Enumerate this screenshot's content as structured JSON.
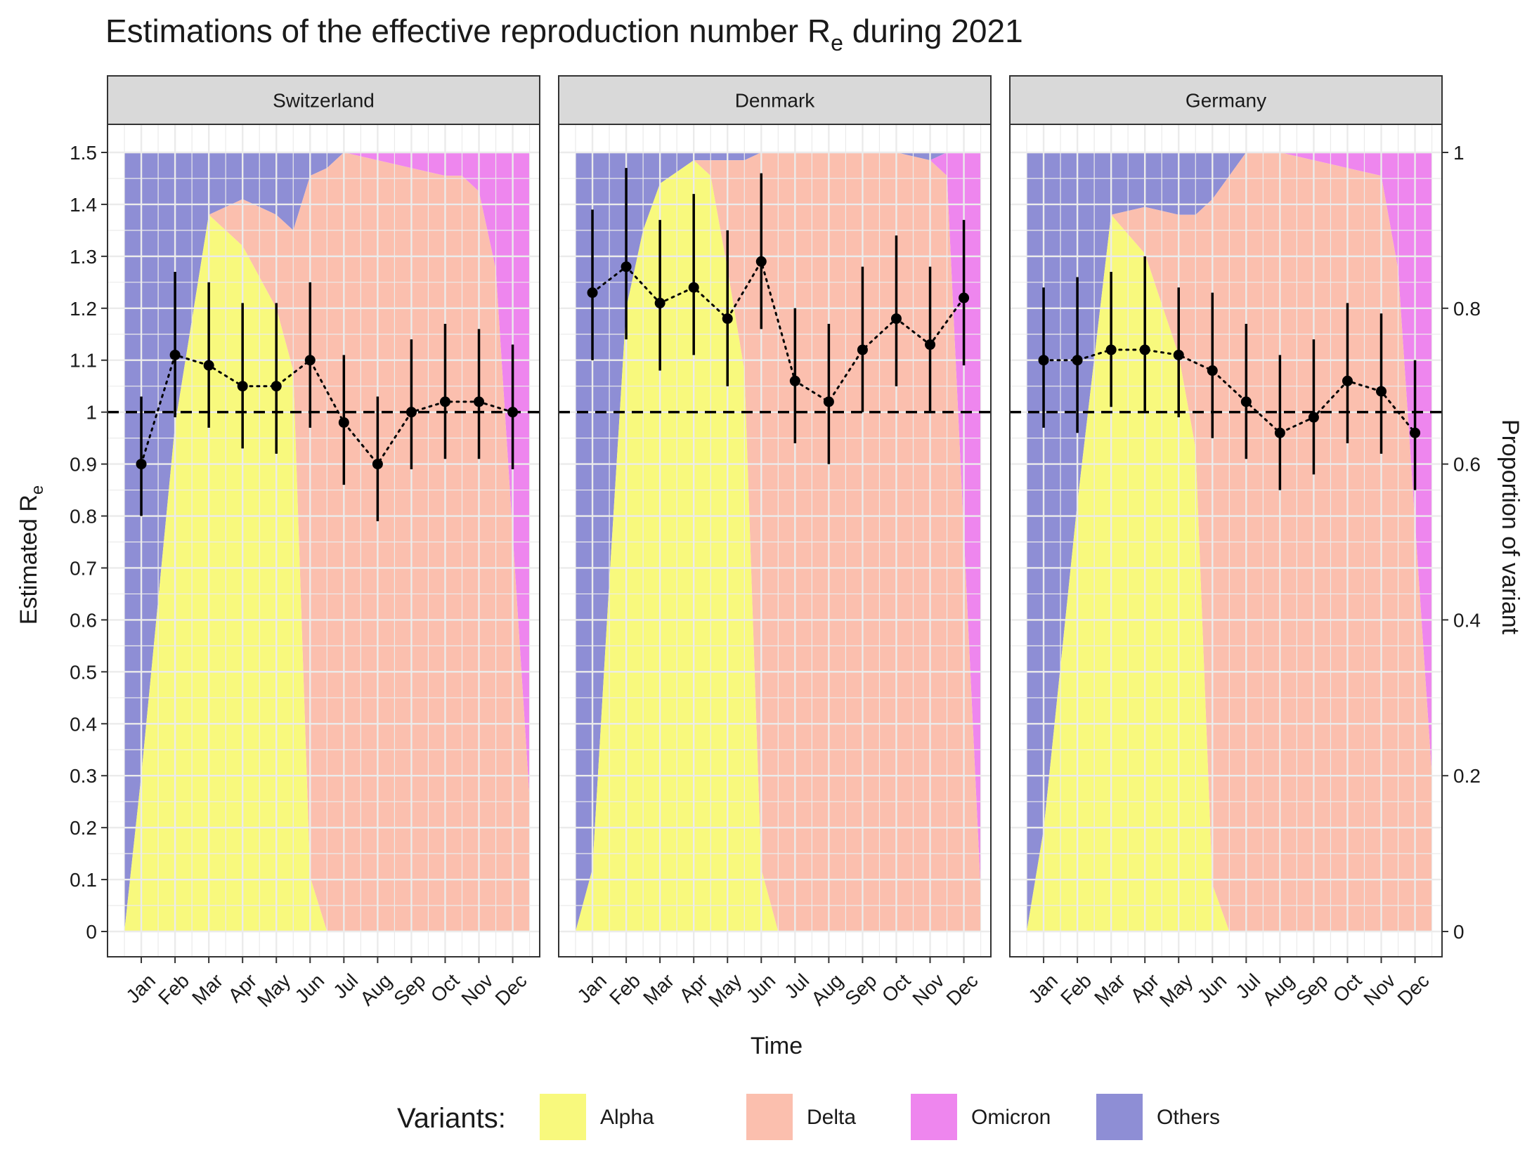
{
  "chart_data": {
    "type": "area",
    "title_main": "Estimations of the effective reproduction number R",
    "title_sub": "e",
    "title_tail": " during 2021",
    "xlabel": "Time",
    "ylabel_main": "Estimated R",
    "ylabel_sub": "e",
    "ylabel_right": "Proportion of variant",
    "ylim": [
      0,
      1.5
    ],
    "y_ticks": [
      "0",
      "0.1",
      "0.2",
      "0.3",
      "0.4",
      "0.5",
      "0.6",
      "0.7",
      "0.8",
      "0.9",
      "1",
      "1.1",
      "1.2",
      "1.3",
      "1.4",
      "1.5"
    ],
    "y_right_ticks": [
      "0",
      "0.2",
      "0.4",
      "0.6",
      "0.8",
      "1"
    ],
    "months": [
      "Jan",
      "Feb",
      "Mar",
      "Apr",
      "May",
      "Jun",
      "Jul",
      "Aug",
      "Sep",
      "Oct",
      "Nov",
      "Dec"
    ],
    "reference_line": 1,
    "legend_title": "Variants:",
    "legend_position": "bottom",
    "variants": [
      {
        "name": "Alpha",
        "color": "#f8f97d"
      },
      {
        "name": "Delta",
        "color": "#fbbfae"
      },
      {
        "name": "Omicron",
        "color": "#ee86ee"
      },
      {
        "name": "Others",
        "color": "#8e8ed5"
      }
    ],
    "panels": [
      {
        "name": "Switzerland",
        "estimate": [
          0.9,
          1.11,
          1.09,
          1.05,
          1.05,
          1.1,
          0.98,
          0.9,
          1.0,
          1.02,
          1.02,
          1.0
        ],
        "lower": [
          0.8,
          0.99,
          0.97,
          0.93,
          0.92,
          0.97,
          0.86,
          0.79,
          0.89,
          0.91,
          0.91,
          0.89
        ],
        "upper": [
          1.03,
          1.27,
          1.25,
          1.21,
          1.21,
          1.25,
          1.11,
          1.03,
          1.14,
          1.17,
          1.16,
          1.13
        ],
        "composition": {
          "t": [
            0.5,
            1.0,
            2.0,
            3.0,
            4.0,
            5.0,
            5.5,
            6.0,
            6.5,
            7.0,
            8.0,
            9.0,
            10.0,
            10.5,
            11.0,
            11.5,
            12.5
          ],
          "alpha": [
            0.0,
            0.2,
            0.65,
            0.92,
            0.88,
            0.8,
            0.72,
            0.07,
            0.0,
            0.0,
            0.0,
            0.0,
            0.0,
            0.0,
            0.0,
            0.0,
            0.0
          ],
          "delta": [
            0.0,
            0.0,
            0.0,
            0.0,
            0.06,
            0.12,
            0.18,
            0.9,
            0.98,
            1.0,
            0.99,
            0.98,
            0.97,
            0.97,
            0.95,
            0.85,
            0.17
          ],
          "omicron": [
            0.0,
            0.0,
            0.0,
            0.0,
            0.0,
            0.0,
            0.0,
            0.0,
            0.0,
            0.0,
            0.01,
            0.02,
            0.03,
            0.03,
            0.05,
            0.15,
            0.83
          ]
        }
      },
      {
        "name": "Denmark",
        "estimate": [
          1.23,
          1.28,
          1.21,
          1.24,
          1.18,
          1.29,
          1.06,
          1.02,
          1.12,
          1.18,
          1.13,
          1.22
        ],
        "lower": [
          1.1,
          1.14,
          1.08,
          1.11,
          1.05,
          1.16,
          0.94,
          0.9,
          1.0,
          1.05,
          1.0,
          1.09
        ],
        "upper": [
          1.39,
          1.47,
          1.37,
          1.42,
          1.35,
          1.46,
          1.2,
          1.17,
          1.28,
          1.34,
          1.28,
          1.37
        ],
        "composition": {
          "t": [
            0.5,
            1.0,
            1.5,
            2.0,
            2.5,
            3.0,
            4.0,
            4.5,
            5.0,
            5.5,
            6.0,
            6.5,
            7.0,
            8.0,
            9.0,
            10.0,
            11.0,
            11.5,
            12.5
          ],
          "alpha": [
            0.0,
            0.08,
            0.45,
            0.8,
            0.9,
            0.96,
            0.99,
            0.97,
            0.85,
            0.72,
            0.08,
            0.0,
            0.0,
            0.0,
            0.0,
            0.0,
            0.0,
            0.0,
            0.0
          ],
          "delta": [
            0.0,
            0.0,
            0.0,
            0.0,
            0.0,
            0.0,
            0.0,
            0.02,
            0.14,
            0.27,
            0.92,
            1.0,
            1.0,
            1.0,
            1.0,
            1.0,
            0.99,
            0.97,
            0.05
          ],
          "omicron": [
            0.0,
            0.0,
            0.0,
            0.0,
            0.0,
            0.0,
            0.0,
            0.0,
            0.0,
            0.0,
            0.0,
            0.0,
            0.0,
            0.0,
            0.0,
            0.0,
            0.0,
            0.03,
            0.95
          ]
        }
      },
      {
        "name": "Germany",
        "estimate": [
          1.1,
          1.1,
          1.12,
          1.12,
          1.11,
          1.08,
          1.02,
          0.96,
          0.99,
          1.06,
          1.04,
          0.96
        ],
        "lower": [
          0.97,
          0.96,
          1.01,
          1.0,
          0.99,
          0.95,
          0.91,
          0.85,
          0.88,
          0.94,
          0.92,
          0.85
        ],
        "upper": [
          1.24,
          1.26,
          1.27,
          1.3,
          1.24,
          1.23,
          1.17,
          1.11,
          1.14,
          1.21,
          1.19,
          1.1
        ],
        "composition": {
          "t": [
            0.5,
            1.0,
            2.0,
            3.0,
            4.0,
            5.0,
            5.5,
            6.0,
            6.5,
            7.0,
            8.0,
            9.0,
            10.0,
            11.0,
            11.5,
            12.5
          ],
          "alpha": [
            0.0,
            0.13,
            0.55,
            0.92,
            0.87,
            0.74,
            0.62,
            0.06,
            0.0,
            0.0,
            0.0,
            0.0,
            0.0,
            0.0,
            0.0,
            0.0
          ],
          "delta": [
            0.0,
            0.0,
            0.0,
            0.0,
            0.06,
            0.18,
            0.3,
            0.88,
            0.97,
            1.0,
            1.0,
            0.99,
            0.98,
            0.97,
            0.85,
            0.2
          ],
          "omicron": [
            0.0,
            0.0,
            0.0,
            0.0,
            0.0,
            0.0,
            0.0,
            0.0,
            0.0,
            0.0,
            0.0,
            0.01,
            0.02,
            0.03,
            0.15,
            0.8
          ]
        }
      }
    ]
  }
}
